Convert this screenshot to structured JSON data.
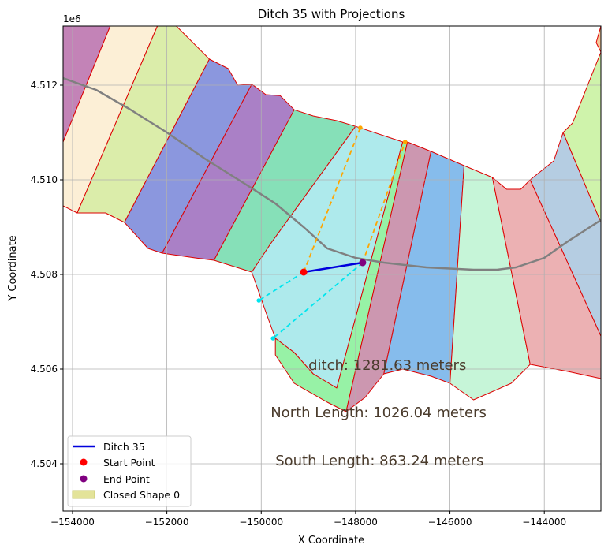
{
  "chart_data": {
    "type": "map-plot",
    "title": "Ditch 35 with Projections",
    "xlabel": "X Coordinate",
    "ylabel": "Y Coordinate",
    "y_offset_label": "1e6",
    "xlim": [
      -154200,
      -142800
    ],
    "ylim": [
      4503000,
      4513250
    ],
    "xticks": [
      -154000,
      -152000,
      -150000,
      -148000,
      -146000,
      -144000
    ],
    "xtick_labels": [
      "−154000",
      "−152000",
      "−150000",
      "−148000",
      "−146000",
      "−144000"
    ],
    "yticks": [
      4504000,
      4506000,
      4508000,
      4510000,
      4512000
    ],
    "ytick_labels": [
      "4.504",
      "4.506",
      "4.508",
      "4.510",
      "4.512"
    ],
    "grid": true,
    "polygons": [
      {
        "fill": "#c383b7",
        "points": [
          [
            -154200,
            4513250
          ],
          [
            -153200,
            4513250
          ],
          [
            -154200,
            4510800
          ]
        ]
      },
      {
        "fill": "#fcefd6",
        "points": [
          [
            -153200,
            4513250
          ],
          [
            -152200,
            4513250
          ],
          [
            -153900,
            4509300
          ],
          [
            -154200,
            4509450
          ],
          [
            -154200,
            4510800
          ]
        ]
      },
      {
        "fill": "#dbedaa",
        "points": [
          [
            -152200,
            4513250
          ],
          [
            -151800,
            4513250
          ],
          [
            -151100,
            4512550
          ],
          [
            -152900,
            4509100
          ],
          [
            -153300,
            4509300
          ],
          [
            -153900,
            4509300
          ]
        ]
      },
      {
        "fill": "#8b97de",
        "points": [
          [
            -151100,
            4512550
          ],
          [
            -150700,
            4512350
          ],
          [
            -150500,
            4512000
          ],
          [
            -150200,
            4512020
          ],
          [
            -152100,
            4508450
          ],
          [
            -152400,
            4508550
          ],
          [
            -152900,
            4509100
          ]
        ]
      },
      {
        "fill": "#aa80c6",
        "points": [
          [
            -150200,
            4512020
          ],
          [
            -149900,
            4511800
          ],
          [
            -149600,
            4511780
          ],
          [
            -149300,
            4511480
          ],
          [
            -151000,
            4508300
          ],
          [
            -151400,
            4508350
          ],
          [
            -152100,
            4508450
          ]
        ]
      },
      {
        "fill": "#86e0b8",
        "points": [
          [
            -149300,
            4511480
          ],
          [
            -148900,
            4511350
          ],
          [
            -148400,
            4511250
          ],
          [
            -148000,
            4511130
          ],
          [
            -149800,
            4508650
          ],
          [
            -150200,
            4508050
          ],
          [
            -151000,
            4508300
          ]
        ]
      },
      {
        "fill": "#aeeaec",
        "points": [
          [
            -148000,
            4511130
          ],
          [
            -147000,
            4510800
          ],
          [
            -148400,
            4505600
          ],
          [
            -148900,
            4505900
          ],
          [
            -149300,
            4506350
          ],
          [
            -149700,
            4506650
          ],
          [
            -149900,
            4507200
          ],
          [
            -150200,
            4508050
          ],
          [
            -149800,
            4508650
          ]
        ]
      },
      {
        "fill": "#97f2a6",
        "points": [
          [
            -147000,
            4510800
          ],
          [
            -146900,
            4510800
          ],
          [
            -148200,
            4505100
          ],
          [
            -148600,
            4505300
          ],
          [
            -149300,
            4505700
          ],
          [
            -149700,
            4506300
          ],
          [
            -149700,
            4506650
          ],
          [
            -149300,
            4506350
          ],
          [
            -148900,
            4505900
          ],
          [
            -148400,
            4505600
          ]
        ]
      },
      {
        "fill": "#cc97b0",
        "points": [
          [
            -146900,
            4510800
          ],
          [
            -146400,
            4510600
          ],
          [
            -147400,
            4505900
          ],
          [
            -147800,
            4505400
          ],
          [
            -148200,
            4505100
          ]
        ]
      },
      {
        "fill": "#86bcec",
        "points": [
          [
            -146400,
            4510600
          ],
          [
            -145700,
            4510300
          ],
          [
            -146000,
            4505700
          ],
          [
            -146400,
            4505850
          ],
          [
            -147000,
            4506000
          ],
          [
            -147400,
            4505900
          ]
        ]
      },
      {
        "fill": "#c6f5d8",
        "points": [
          [
            -145700,
            4510300
          ],
          [
            -145100,
            4510050
          ],
          [
            -144300,
            4506100
          ],
          [
            -144700,
            4505700
          ],
          [
            -145500,
            4505350
          ],
          [
            -146000,
            4505700
          ]
        ]
      },
      {
        "fill": "#ecb1b3",
        "points": [
          [
            -145100,
            4510050
          ],
          [
            -144800,
            4509800
          ],
          [
            -144500,
            4509800
          ],
          [
            -144300,
            4510000
          ],
          [
            -142800,
            4506700
          ],
          [
            -142800,
            4505800
          ],
          [
            -143500,
            4505950
          ],
          [
            -144300,
            4506100
          ]
        ]
      },
      {
        "fill": "#b5cde2",
        "points": [
          [
            -144300,
            4510000
          ],
          [
            -143800,
            4510400
          ],
          [
            -143600,
            4511000
          ],
          [
            -142800,
            4509100
          ],
          [
            -142800,
            4506700
          ]
        ]
      },
      {
        "fill": "#cff3ab",
        "points": [
          [
            -143600,
            4511000
          ],
          [
            -143400,
            4511200
          ],
          [
            -142800,
            4512700
          ],
          [
            -142800,
            4509100
          ]
        ]
      },
      {
        "fill": "#f5c79a",
        "points": [
          [
            -142800,
            4513250
          ],
          [
            -142900,
            4512900
          ],
          [
            -142800,
            4512700
          ]
        ]
      }
    ],
    "centerline": {
      "color": "#808080",
      "points": [
        [
          -154200,
          4512150
        ],
        [
          -153500,
          4511900
        ],
        [
          -152800,
          4511500
        ],
        [
          -152000,
          4511000
        ],
        [
          -151200,
          4510450
        ],
        [
          -150400,
          4509950
        ],
        [
          -149700,
          4509500
        ],
        [
          -149100,
          4509000
        ],
        [
          -148600,
          4508550
        ],
        [
          -148000,
          4508350
        ],
        [
          -147400,
          4508250
        ],
        [
          -146500,
          4508150
        ],
        [
          -145500,
          4508100
        ],
        [
          -145000,
          4508100
        ],
        [
          -144600,
          4508150
        ],
        [
          -144000,
          4508350
        ],
        [
          -143500,
          4508700
        ],
        [
          -142800,
          4509150
        ]
      ]
    },
    "ditch": {
      "name": "Ditch 35",
      "color": "#0000dd",
      "start": [
        -149100,
        4508050
      ],
      "end": [
        -147850,
        4508250
      ]
    },
    "north_projection": {
      "color": "#ffa500",
      "lines": [
        [
          [
            -149100,
            4508050
          ],
          [
            -147900,
            4511100
          ]
        ],
        [
          [
            -147850,
            4508250
          ],
          [
            -146950,
            4510800
          ]
        ]
      ]
    },
    "south_projection": {
      "color": "#00e5ee",
      "lines": [
        [
          [
            -149100,
            4508050
          ],
          [
            -150050,
            4507450
          ]
        ],
        [
          [
            -147850,
            4508250
          ],
          [
            -149750,
            4506650
          ]
        ]
      ]
    },
    "start_point": {
      "name": "Start Point",
      "color": "#ff0000"
    },
    "end_point": {
      "name": "End Point",
      "color": "#800080"
    },
    "closed_shape": {
      "name": "Closed Shape 0",
      "color": "#dcdc80"
    },
    "outline_color": "#dd0000",
    "annotations": [
      {
        "text": "ditch: 1281.63 meters",
        "x": -149000,
        "y": 4505980
      },
      {
        "text": "North Length: 1026.04 meters",
        "x": -149800,
        "y": 4504980
      },
      {
        "text": "South Length: 863.24 meters",
        "x": -149700,
        "y": 4503970
      }
    ],
    "legend_position": "lower-left",
    "legend": [
      "Ditch 35",
      "Start Point",
      "End Point",
      "Closed Shape 0"
    ]
  }
}
